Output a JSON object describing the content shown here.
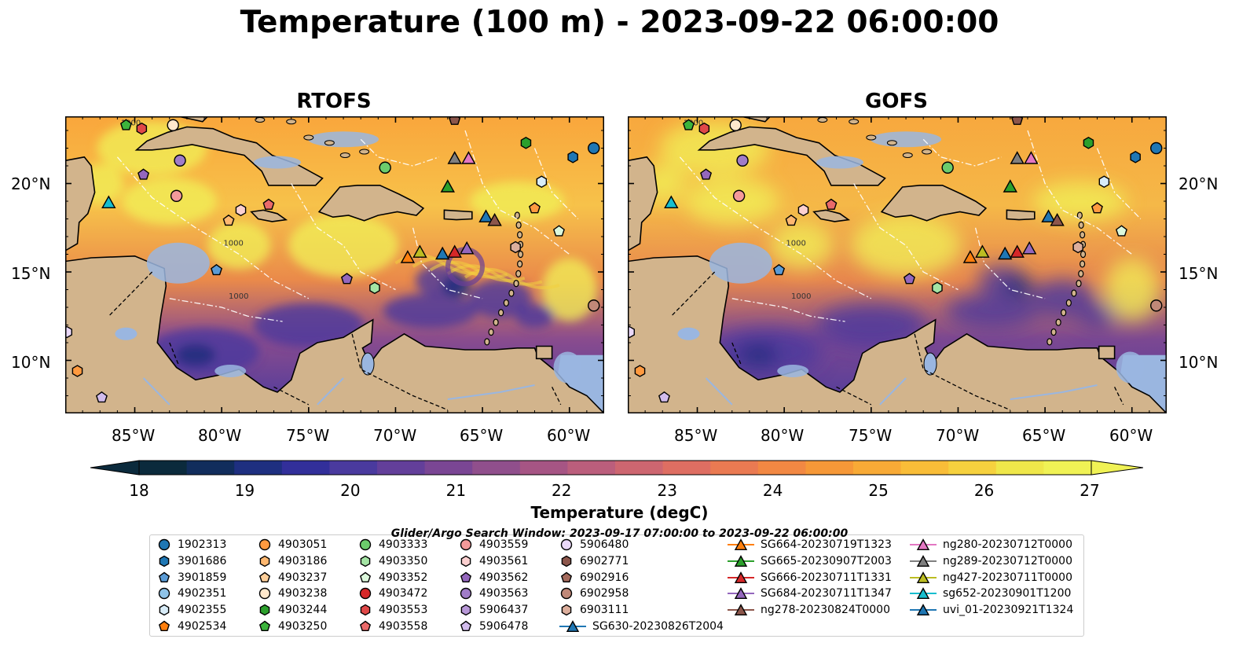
{
  "title": "Temperature (100 m) - 2023-09-22 06:00:00",
  "panels": [
    {
      "title": "RTOFS"
    },
    {
      "title": "GOFS"
    }
  ],
  "lon_ticks": [
    "85°W",
    "80°W",
    "75°W",
    "70°W",
    "65°W",
    "60°W"
  ],
  "lat_ticks": [
    "20°N",
    "15°N",
    "10°N"
  ],
  "contour_labels": [
    "1000",
    "1000",
    "1000"
  ],
  "colorbar": {
    "label": "Temperature (degC)",
    "ticks": [
      "18",
      "19",
      "20",
      "21",
      "22",
      "23",
      "24",
      "25",
      "26",
      "27"
    ],
    "range": [
      18,
      27
    ],
    "colors": [
      "#0b2a3c",
      "#112d5c",
      "#1e2f80",
      "#322f9a",
      "#4a3a9e",
      "#633f9a",
      "#7a4694",
      "#904f8c",
      "#a65584",
      "#bb5e7c",
      "#cd6670",
      "#de6e62",
      "#ea7a52",
      "#f28843",
      "#f69838",
      "#f8aa36",
      "#f9bd38",
      "#f6d13e",
      "#efe74a",
      "#f0f255"
    ],
    "extend": "both"
  },
  "legend": {
    "title": "Glider/Argo Search Window: 2023-09-17 07:00:00 to 2023-09-22 06:00:00",
    "columns": [
      [
        {
          "label": "1902313",
          "shape": "circle",
          "color": "#1f77b4"
        },
        {
          "label": "3901686",
          "shape": "hexagon",
          "color": "#1f77b4"
        },
        {
          "label": "3901859",
          "shape": "pentagon",
          "color": "#5b9bd5"
        },
        {
          "label": "4902351",
          "shape": "circle",
          "color": "#8fc3e8"
        },
        {
          "label": "4902355",
          "shape": "hexagon",
          "color": "#d8ecf8"
        },
        {
          "label": "4902534",
          "shape": "pentagon",
          "color": "#ff7f0e"
        }
      ],
      [
        {
          "label": "4903051",
          "shape": "circle",
          "color": "#ff9a40"
        },
        {
          "label": "4903186",
          "shape": "hexagon",
          "color": "#ffb870"
        },
        {
          "label": "4903237",
          "shape": "pentagon",
          "color": "#ffcf9a"
        },
        {
          "label": "4903238",
          "shape": "circle",
          "color": "#ffe8cc"
        },
        {
          "label": "4903244",
          "shape": "hexagon",
          "color": "#2ca02c"
        },
        {
          "label": "4903250",
          "shape": "pentagon",
          "color": "#3cb43c"
        }
      ],
      [
        {
          "label": "4903333",
          "shape": "circle",
          "color": "#6ccc6c"
        },
        {
          "label": "4903350",
          "shape": "hexagon",
          "color": "#a4e4a4"
        },
        {
          "label": "4903352",
          "shape": "pentagon",
          "color": "#dcf8dc"
        },
        {
          "label": "4903472",
          "shape": "circle",
          "color": "#d62728"
        },
        {
          "label": "4903553",
          "shape": "hexagon",
          "color": "#e04848"
        },
        {
          "label": "4903558",
          "shape": "pentagon",
          "color": "#ea6a6a"
        }
      ],
      [
        {
          "label": "4903559",
          "shape": "circle",
          "color": "#f49a9a"
        },
        {
          "label": "4903561",
          "shape": "hexagon",
          "color": "#fcd0d0"
        },
        {
          "label": "4903562",
          "shape": "pentagon",
          "color": "#9467bd"
        },
        {
          "label": "4903563",
          "shape": "circle",
          "color": "#a07cc8"
        },
        {
          "label": "5906437",
          "shape": "hexagon",
          "color": "#b898d8"
        },
        {
          "label": "5906478",
          "shape": "pentagon",
          "color": "#d2bcec"
        }
      ],
      [
        {
          "label": "5906480",
          "shape": "circle",
          "color": "#ead8f8"
        },
        {
          "label": "6902771",
          "shape": "hexagon",
          "color": "#8c564b"
        },
        {
          "label": "6902916",
          "shape": "pentagon",
          "color": "#a46a5c"
        },
        {
          "label": "6902958",
          "shape": "circle",
          "color": "#c08878"
        },
        {
          "label": "6903111",
          "shape": "hexagon",
          "color": "#dcae9c"
        },
        {
          "label": "SG630-20230826T2004",
          "shape": "triangle-line",
          "color": "#1f77b4"
        }
      ],
      [
        {
          "label": "SG664-20230719T1323",
          "shape": "triangle-line",
          "color": "#ff7f0e"
        },
        {
          "label": "SG665-20230907T2003",
          "shape": "triangle-line",
          "color": "#2ca02c"
        },
        {
          "label": "SG666-20230711T1331",
          "shape": "triangle-line",
          "color": "#d62728"
        },
        {
          "label": "SG684-20230711T1347",
          "shape": "triangle-line",
          "color": "#9467bd"
        },
        {
          "label": "ng278-20230824T0000",
          "shape": "triangle-line",
          "color": "#8c564b"
        }
      ],
      [
        {
          "label": "ng280-20230712T0000",
          "shape": "triangle-line",
          "color": "#e377c2"
        },
        {
          "label": "ng289-20230712T0000",
          "shape": "triangle-line",
          "color": "#7f7f7f"
        },
        {
          "label": "ng427-20230711T0000",
          "shape": "triangle-line",
          "color": "#bcbd22"
        },
        {
          "label": "sg652-20230901T1200",
          "shape": "triangle-line",
          "color": "#17becf"
        },
        {
          "label": "uvi_01-20230921T1324",
          "shape": "triangle-line",
          "color": "#1f77b4"
        }
      ]
    ]
  },
  "map_markers": [
    {
      "lon": -85.5,
      "lat": 23.3,
      "shape": "pentagon",
      "color": "#3cb43c"
    },
    {
      "lon": -84.6,
      "lat": 23.1,
      "shape": "hexagon",
      "color": "#e04848"
    },
    {
      "lon": -82.8,
      "lat": 23.3,
      "shape": "circle",
      "color": "#ffe8cc"
    },
    {
      "lon": -84.5,
      "lat": 20.5,
      "shape": "pentagon",
      "color": "#9467bd"
    },
    {
      "lon": -82.4,
      "lat": 21.3,
      "shape": "circle",
      "color": "#a07cc8"
    },
    {
      "lon": -82.6,
      "lat": 19.3,
      "shape": "circle",
      "color": "#f49a9a"
    },
    {
      "lon": -78.9,
      "lat": 18.5,
      "shape": "hexagon",
      "color": "#fcd0d0"
    },
    {
      "lon": -77.3,
      "lat": 18.8,
      "shape": "pentagon",
      "color": "#ea6a6a"
    },
    {
      "lon": -86.5,
      "lat": 18.9,
      "shape": "triangle",
      "color": "#17becf"
    },
    {
      "lon": -80.3,
      "lat": 15.1,
      "shape": "pentagon",
      "color": "#5b9bd5"
    },
    {
      "lon": -70.6,
      "lat": 20.9,
      "shape": "circle",
      "color": "#6ccc6c"
    },
    {
      "lon": -67.0,
      "lat": 19.8,
      "shape": "triangle",
      "color": "#2ca02c"
    },
    {
      "lon": -66.6,
      "lat": 21.4,
      "shape": "triangle",
      "color": "#7f7f7f"
    },
    {
      "lon": -65.8,
      "lat": 21.4,
      "shape": "triangle",
      "color": "#e377c2"
    },
    {
      "lon": -66.6,
      "lat": 23.6,
      "shape": "pentagon",
      "color": "#8c564b"
    },
    {
      "lon": -62.5,
      "lat": 22.3,
      "shape": "hexagon",
      "color": "#2ca02c"
    },
    {
      "lon": -59.8,
      "lat": 21.5,
      "shape": "hexagon",
      "color": "#1f77b4"
    },
    {
      "lon": -58.6,
      "lat": 22.0,
      "shape": "circle",
      "color": "#1f77b4"
    },
    {
      "lon": -61.6,
      "lat": 20.1,
      "shape": "hexagon",
      "color": "#d8ecf8"
    },
    {
      "lon": -62.0,
      "lat": 18.6,
      "shape": "pentagon",
      "color": "#ff9a40"
    },
    {
      "lon": -64.8,
      "lat": 18.1,
      "shape": "triangle",
      "color": "#1f77b4"
    },
    {
      "lon": -64.3,
      "lat": 17.9,
      "shape": "triangle",
      "color": "#8c564b"
    },
    {
      "lon": -60.6,
      "lat": 17.3,
      "shape": "pentagon",
      "color": "#dcf8dc"
    },
    {
      "lon": -69.3,
      "lat": 15.8,
      "shape": "triangle",
      "color": "#ff7f0e"
    },
    {
      "lon": -68.6,
      "lat": 16.1,
      "shape": "triangle",
      "color": "#bcbd22"
    },
    {
      "lon": -67.3,
      "lat": 16.0,
      "shape": "triangle",
      "color": "#1f77b4"
    },
    {
      "lon": -66.6,
      "lat": 16.1,
      "shape": "triangle",
      "color": "#d62728"
    },
    {
      "lon": -65.9,
      "lat": 16.3,
      "shape": "triangle",
      "color": "#9467bd"
    },
    {
      "lon": -63.1,
      "lat": 16.4,
      "shape": "hexagon",
      "color": "#dcae9c"
    },
    {
      "lon": -72.8,
      "lat": 14.6,
      "shape": "pentagon",
      "color": "#9467bd"
    },
    {
      "lon": -71.2,
      "lat": 14.1,
      "shape": "hexagon",
      "color": "#a4e4a4"
    },
    {
      "lon": -58.6,
      "lat": 13.1,
      "shape": "circle",
      "color": "#c08878"
    },
    {
      "lon": -88.9,
      "lat": 11.6,
      "shape": "hexagon",
      "color": "#ead8f8"
    },
    {
      "lon": -88.3,
      "lat": 9.4,
      "shape": "hexagon",
      "color": "#ff9a40"
    },
    {
      "lon": -86.9,
      "lat": 7.9,
      "shape": "pentagon",
      "color": "#d2bcec"
    },
    {
      "lon": -79.6,
      "lat": 17.9,
      "shape": "pentagon",
      "color": "#ffb870"
    }
  ]
}
